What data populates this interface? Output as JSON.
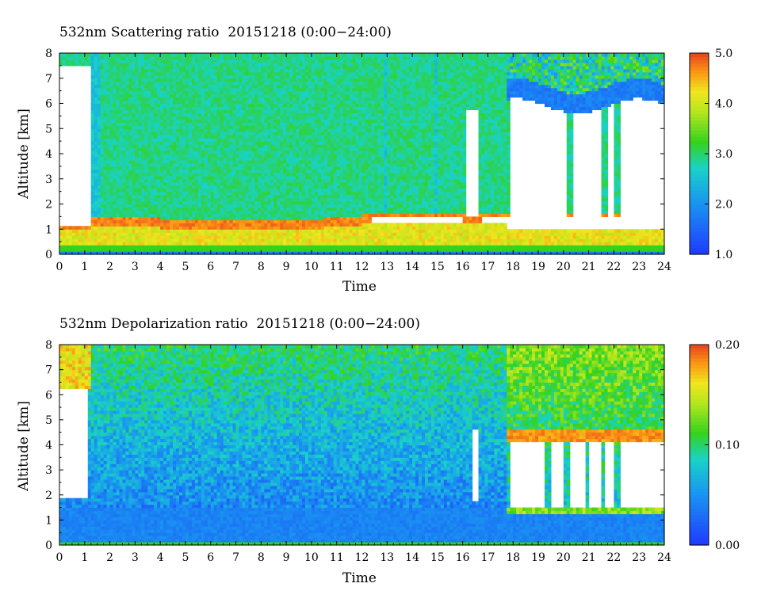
{
  "chart_data": [
    {
      "type": "heatmap",
      "title": "532nm Scattering ratio  20151218 (0:00−24:00)",
      "xlabel": "Time",
      "ylabel": "Altitude [km]",
      "xlim": [
        0,
        24
      ],
      "ylim": [
        0,
        8
      ],
      "x_ticks": [
        "0",
        "1",
        "2",
        "3",
        "4",
        "5",
        "6",
        "7",
        "8",
        "9",
        "10",
        "11",
        "12",
        "13",
        "14",
        "15",
        "16",
        "17",
        "18",
        "19",
        "20",
        "21",
        "22",
        "23",
        "24"
      ],
      "y_ticks": [
        "0",
        "1",
        "2",
        "3",
        "4",
        "5",
        "6",
        "7",
        "8"
      ],
      "colorbar": {
        "min": 1.0,
        "max": 5.0,
        "ticks": [
          "1.0",
          "2.0",
          "3.0",
          "4.0",
          "5.0"
        ]
      },
      "colors": {
        "low": "#1f3cff",
        "mid_low": "#19d2c8",
        "mid": "#35d21e",
        "mid_high": "#f0e61e",
        "high": "#e8461e",
        "nodata": "#ffffff"
      }
    },
    {
      "type": "heatmap",
      "title": "532nm Depolarization ratio  20151218 (0:00−24:00)",
      "xlabel": "Time",
      "ylabel": "Altitude [km]",
      "xlim": [
        0,
        24
      ],
      "ylim": [
        0,
        8
      ],
      "x_ticks": [
        "0",
        "1",
        "2",
        "3",
        "4",
        "5",
        "6",
        "7",
        "8",
        "9",
        "10",
        "11",
        "12",
        "13",
        "14",
        "15",
        "16",
        "17",
        "18",
        "19",
        "20",
        "21",
        "22",
        "23",
        "24"
      ],
      "y_ticks": [
        "0",
        "1",
        "2",
        "3",
        "4",
        "5",
        "6",
        "7",
        "8"
      ],
      "colorbar": {
        "min": 0.0,
        "max": 0.2,
        "ticks": [
          "0.00",
          "0.10",
          "0.20"
        ]
      },
      "colors": {
        "low": "#1f3cff",
        "mid_low": "#19d2c8",
        "mid": "#35d21e",
        "mid_high": "#f0e61e",
        "high": "#e8461e",
        "nodata": "#ffffff"
      }
    }
  ]
}
